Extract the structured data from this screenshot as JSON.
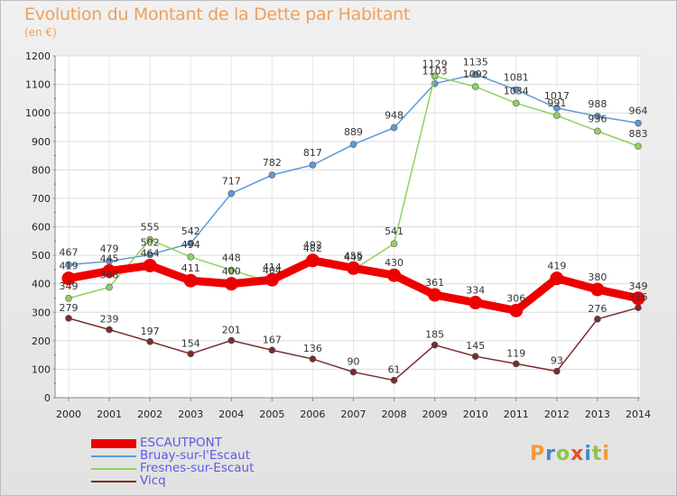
{
  "header": {
    "title": "Evolution du Montant de la Dette par Habitant",
    "subtitle": "(en €)"
  },
  "chart_data": {
    "type": "line",
    "title": "Evolution du Montant de la Dette par Habitant",
    "subtitle": "(en €)",
    "xlabel": "",
    "ylabel": "",
    "x": [
      "2000",
      "2001",
      "2002",
      "2003",
      "2004",
      "2005",
      "2006",
      "2007",
      "2008",
      "2009",
      "2010",
      "2011",
      "2012",
      "2013",
      "2014"
    ],
    "ylim": [
      0,
      1200
    ],
    "yticks": [
      0,
      100,
      200,
      300,
      400,
      500,
      600,
      700,
      800,
      900,
      1000,
      1100,
      1200
    ],
    "grid": true,
    "legend_position": "bottom-left",
    "series": [
      {
        "name": "ESCAUTPONT",
        "color": "#ee0000",
        "values": [
          419,
          445,
          464,
          411,
          400,
          414,
          482,
          455,
          430,
          361,
          334,
          306,
          419,
          380,
          349
        ]
      },
      {
        "name": "Bruay-sur-l'Escaut",
        "color": "#5b9bd5",
        "values": [
          467,
          479,
          502,
          542,
          717,
          782,
          817,
          889,
          948,
          1103,
          1135,
          1081,
          1017,
          988,
          964
        ]
      },
      {
        "name": "Fresnes-sur-Escaut",
        "color": "#8fd163",
        "values": [
          349,
          388,
          555,
          494,
          448,
          404,
          492,
          449,
          541,
          1129,
          1092,
          1034,
          991,
          936,
          883
        ]
      },
      {
        "name": "Vicq",
        "color": "#7b2c2c",
        "values": [
          279,
          239,
          197,
          154,
          201,
          167,
          136,
          90,
          61,
          185,
          145,
          119,
          93,
          276,
          316
        ]
      }
    ]
  },
  "logo": {
    "text": "Proxiti",
    "colors": [
      "#f29a36",
      "#3f8ad0",
      "#8fc63f",
      "#e64f2c",
      "#3f8ad0",
      "#8fc63f",
      "#f29a36"
    ]
  }
}
